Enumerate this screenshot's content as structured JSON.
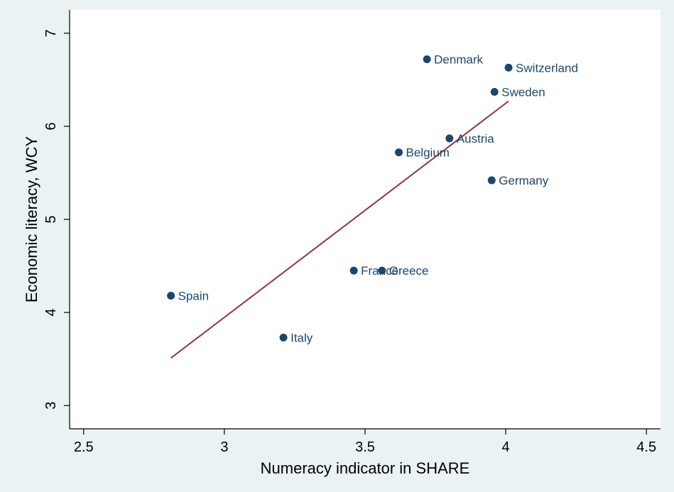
{
  "chart_data": {
    "type": "scatter",
    "title": "",
    "xlabel": "Numeracy indicator in SHARE",
    "ylabel": "Economic literacy, WCY",
    "xlim": [
      2.45,
      4.55
    ],
    "ylim": [
      2.75,
      7.25
    ],
    "xticks": [
      2.5,
      3,
      3.5,
      4,
      4.5
    ],
    "xtick_labels": [
      "2.5",
      "3",
      "3.5",
      "4",
      "4.5"
    ],
    "yticks": [
      3,
      4,
      5,
      6,
      7
    ],
    "ytick_labels": [
      "3",
      "4",
      "5",
      "6",
      "7"
    ],
    "grid": false,
    "legend": "none",
    "series": [
      {
        "points": [
          {
            "label": "Spain",
            "x": 2.81,
            "y": 4.18
          },
          {
            "label": "Italy",
            "x": 3.21,
            "y": 3.73
          },
          {
            "label": "France",
            "x": 3.46,
            "y": 4.45
          },
          {
            "label": "Greece",
            "x": 3.56,
            "y": 4.45
          },
          {
            "label": "Belgium",
            "x": 3.62,
            "y": 5.72
          },
          {
            "label": "Denmark",
            "x": 3.72,
            "y": 6.72
          },
          {
            "label": "Austria",
            "x": 3.8,
            "y": 5.87
          },
          {
            "label": "Germany",
            "x": 3.95,
            "y": 5.42
          },
          {
            "label": "Sweden",
            "x": 3.96,
            "y": 6.37
          },
          {
            "label": "Switzerland",
            "x": 4.01,
            "y": 6.63
          }
        ]
      }
    ],
    "fit_line": {
      "x": [
        2.81,
        4.01
      ],
      "y": [
        3.51,
        6.27
      ]
    },
    "colors": {
      "background": "#eaf2f3",
      "plot_background": "#ffffff",
      "marker": "#1a476f",
      "label": "#1a476f",
      "fit_line": "#90353b",
      "axis": "#000000"
    }
  }
}
